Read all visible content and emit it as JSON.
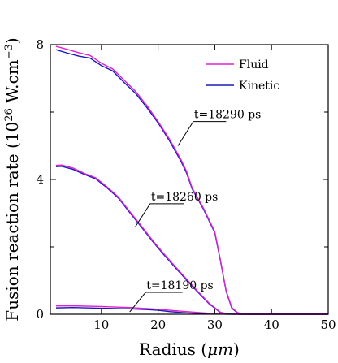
{
  "chart_data": {
    "type": "line",
    "xlabel": "Radius (",
    "xlabel_unit": "μm",
    "xlabel_close": ")",
    "ylabel": "Fusion reaction rate (10",
    "ylabel_exp": "26",
    "ylabel_unit": " W.cm",
    "ylabel_unit_exp": "−3",
    "ylabel_close": ")",
    "xlim": [
      1,
      50
    ],
    "ylim": [
      0,
      8
    ],
    "x_ticks": [
      10,
      20,
      30,
      40,
      50
    ],
    "y_ticks": [
      0,
      4,
      8
    ],
    "x_minor_ticks": [
      10,
      20,
      30,
      40
    ],
    "y_minor_ticks": [
      2,
      6
    ],
    "grid": false,
    "legend_position": "top-right",
    "legend": [
      {
        "label": "Fluid",
        "color": "#e020d0"
      },
      {
        "label": "Kinetic",
        "color": "#1a1ab8"
      }
    ],
    "annotations": [
      {
        "text": "t=18290 ps",
        "anchor": [
          23.5,
          5.0
        ],
        "elbow": [
          26.2,
          5.72
        ],
        "end": [
          32,
          5.72
        ]
      },
      {
        "text": "t=18260 ps",
        "anchor": [
          16.0,
          2.6
        ],
        "elbow": [
          18.6,
          3.28
        ],
        "end": [
          24.5,
          3.28
        ]
      },
      {
        "text": "t=18190 ps",
        "anchor": [
          15.0,
          0.07
        ],
        "elbow": [
          17.8,
          0.65
        ],
        "end": [
          24.3,
          0.65
        ]
      }
    ],
    "series": [
      {
        "time": "t=18290 ps",
        "fluid_x": [
          2,
          4,
          6,
          8,
          10,
          12,
          14,
          16,
          18,
          20,
          22,
          24,
          25,
          26,
          28,
          30,
          31,
          32,
          33,
          34,
          35,
          36,
          38,
          40,
          50
        ],
        "fluid_y": [
          7.95,
          7.86,
          7.76,
          7.68,
          7.45,
          7.28,
          6.95,
          6.62,
          6.2,
          5.72,
          5.2,
          4.6,
          4.25,
          3.75,
          3.15,
          2.45,
          1.6,
          0.7,
          0.2,
          0.05,
          0.01,
          0,
          0,
          0,
          0
        ],
        "kinetic_x": [
          2,
          4,
          6,
          8,
          10,
          12,
          14,
          16,
          18,
          20,
          22,
          24,
          25,
          26,
          28,
          30,
          31,
          32,
          33,
          34,
          35,
          36,
          38,
          40,
          50
        ],
        "kinetic_y": [
          7.85,
          7.75,
          7.66,
          7.6,
          7.38,
          7.22,
          6.88,
          6.56,
          6.14,
          5.68,
          5.15,
          4.55,
          4.2,
          3.72,
          3.12,
          2.42,
          1.58,
          0.68,
          0.18,
          0.04,
          0.01,
          0,
          0,
          0,
          0
        ]
      },
      {
        "time": "t=18260 ps",
        "fluid_x": [
          2,
          3,
          5,
          7,
          9,
          11,
          13,
          15,
          17,
          19,
          21,
          23,
          25,
          27,
          29,
          31,
          32,
          33,
          35,
          40,
          50
        ],
        "fluid_y": [
          4.42,
          4.43,
          4.34,
          4.18,
          4.05,
          3.78,
          3.48,
          3.05,
          2.63,
          2.2,
          1.8,
          1.42,
          1.05,
          0.68,
          0.33,
          0.06,
          0.02,
          0.01,
          0,
          0,
          0
        ],
        "kinetic_x": [
          2,
          3,
          5,
          7,
          9,
          11,
          13,
          15,
          17,
          19,
          21,
          23,
          25,
          27,
          29,
          31,
          32,
          33,
          35,
          40,
          50
        ],
        "kinetic_y": [
          4.38,
          4.39,
          4.3,
          4.15,
          4.02,
          3.75,
          3.45,
          3.02,
          2.6,
          2.17,
          1.77,
          1.39,
          1.02,
          0.66,
          0.31,
          0.05,
          0.02,
          0.01,
          0,
          0,
          0
        ]
      },
      {
        "time": "t=18190 ps",
        "fluid_x": [
          2,
          5,
          10,
          15,
          18,
          20,
          22,
          25,
          28,
          30,
          32,
          35,
          40,
          50
        ],
        "fluid_y": [
          0.25,
          0.25,
          0.23,
          0.2,
          0.17,
          0.15,
          0.12,
          0.08,
          0.04,
          0.02,
          0.005,
          0,
          0,
          0
        ],
        "kinetic_x": [
          2,
          5,
          10,
          15,
          18,
          20,
          22,
          25,
          28,
          30,
          32,
          35,
          40,
          50
        ],
        "kinetic_y": [
          0.19,
          0.2,
          0.18,
          0.16,
          0.14,
          0.12,
          0.08,
          0.04,
          0.02,
          0.01,
          0.003,
          0,
          0,
          0
        ]
      }
    ]
  }
}
